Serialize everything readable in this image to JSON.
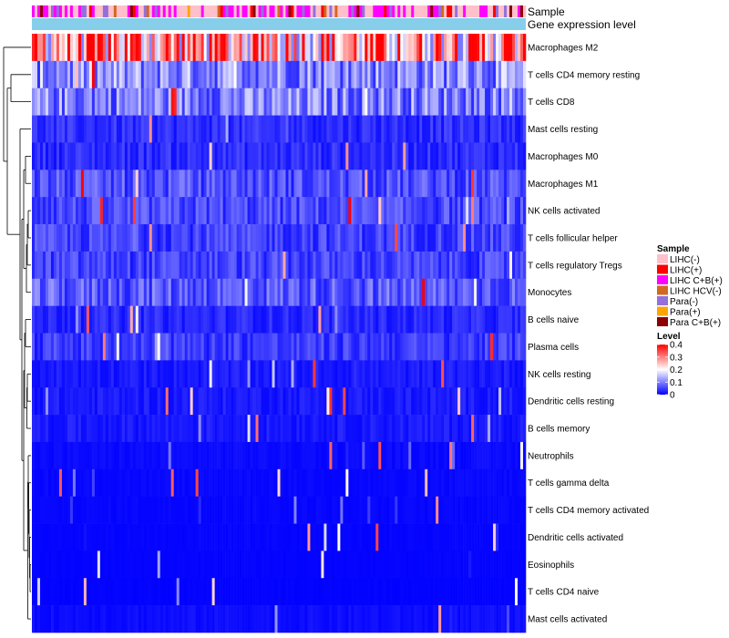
{
  "chart_data": {
    "type": "heatmap",
    "title": "",
    "top_annotations": [
      "Sample",
      "Gene expression level"
    ],
    "rows": [
      {
        "label": "Macrophages M2",
        "mean": 0.28
      },
      {
        "label": "T cells CD4 memory resting",
        "mean": 0.11
      },
      {
        "label": "T cells CD8",
        "mean": 0.1
      },
      {
        "label": "Mast cells resting",
        "mean": 0.035
      },
      {
        "label": "Macrophages M0",
        "mean": 0.035
      },
      {
        "label": "Macrophages M1",
        "mean": 0.06
      },
      {
        "label": "NK cells activated",
        "mean": 0.055
      },
      {
        "label": "T cells follicular helper",
        "mean": 0.05
      },
      {
        "label": "T cells regulatory  Tregs",
        "mean": 0.05
      },
      {
        "label": "Monocytes",
        "mean": 0.07
      },
      {
        "label": "B cells naive",
        "mean": 0.03
      },
      {
        "label": "Plasma cells",
        "mean": 0.045
      },
      {
        "label": "NK cells resting",
        "mean": 0.02
      },
      {
        "label": "Dendritic cells resting",
        "mean": 0.02
      },
      {
        "label": "B cells memory",
        "mean": 0.02
      },
      {
        "label": "Neutrophils",
        "mean": 0.008
      },
      {
        "label": "T cells gamma delta",
        "mean": 0.006
      },
      {
        "label": "T cells CD4 memory activated",
        "mean": 0.005
      },
      {
        "label": "Dendritic cells activated",
        "mean": 0.004
      },
      {
        "label": "Eosinophils",
        "mean": 0.003
      },
      {
        "label": "T cells CD4 naive",
        "mean": 0.002
      },
      {
        "label": "Mast cells activated",
        "mean": 0.01
      }
    ],
    "legend_sample": {
      "title": "Sample",
      "entries": [
        {
          "label": "LIHC(-)",
          "color": "#FFC0CB"
        },
        {
          "label": "LIHC(+)",
          "color": "#FF0000"
        },
        {
          "label": "LIHC C+B(+)",
          "color": "#FF00FF"
        },
        {
          "label": "LIHC HCV(-)",
          "color": "#D2691E"
        },
        {
          "label": "Para(-)",
          "color": "#9370DB"
        },
        {
          "label": "Para(+)",
          "color": "#FFA500"
        },
        {
          "label": "Para C+B(+)",
          "color": "#8B0000"
        }
      ]
    },
    "legend_level": {
      "title": "Level",
      "min": 0,
      "max": 0.4,
      "ticks": [
        {
          "value": 0.4,
          "label": "0.4"
        },
        {
          "value": 0.3,
          "label": "0.3"
        },
        {
          "value": 0.2,
          "label": "0.2"
        },
        {
          "value": 0.1,
          "label": "0.1"
        },
        {
          "value": 0,
          "label": "0"
        }
      ],
      "colors": {
        "low": "#0000FF",
        "mid": "#FFFFFF",
        "high": "#FF0000"
      }
    },
    "expression_level_color": "#87CEEB"
  }
}
